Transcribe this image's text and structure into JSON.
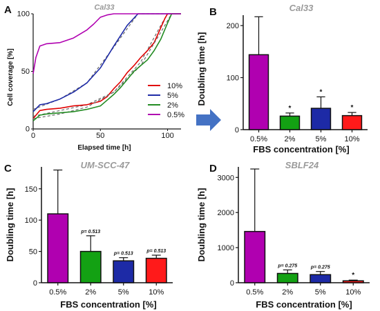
{
  "panel_labels": {
    "a": "A",
    "b": "B",
    "c": "C",
    "d": "D"
  },
  "chart_data": [
    {
      "panel": "A",
      "type": "line",
      "title": "Cal33",
      "xlabel": "Elapsed time [h]",
      "ylabel": "Cell coverage [%]",
      "xlim": [
        0,
        110
      ],
      "ylim": [
        0,
        100
      ],
      "xticks": [
        "0",
        "50",
        "100"
      ],
      "yticks": [
        "0",
        "50",
        "100"
      ],
      "legend_placement": "center-right",
      "colors": {
        "10%": "#e00000",
        "5%": "#1d2aa6",
        "2%": "#228b22",
        "0.5%": "#b000b0",
        "fit": "#6a6a6a"
      },
      "series": [
        {
          "name": "10%",
          "color": "#e00000",
          "x": [
            0,
            5,
            10,
            20,
            30,
            40,
            50,
            55,
            60,
            65,
            70,
            75,
            80,
            85,
            90,
            95,
            98,
            100,
            110
          ],
          "y": [
            9,
            16,
            17,
            18,
            20,
            21,
            24,
            28,
            35,
            41,
            49,
            55,
            62,
            68,
            75,
            88,
            96,
            100,
            100
          ],
          "fit_x": [
            0,
            20,
            40,
            60,
            80,
            95,
            100
          ],
          "fit_y": [
            11,
            16,
            21,
            32,
            58,
            90,
            100
          ]
        },
        {
          "name": "5%",
          "color": "#1d2aa6",
          "x": [
            0,
            5,
            10,
            20,
            30,
            40,
            50,
            60,
            70,
            78,
            80,
            110
          ],
          "y": [
            15,
            21,
            22,
            26,
            32,
            40,
            53,
            72,
            90,
            100,
            100,
            100
          ],
          "fit_x": [
            0,
            20,
            40,
            60,
            78,
            110
          ],
          "fit_y": [
            17,
            26,
            40,
            71,
            100,
            100
          ]
        },
        {
          "name": "2%",
          "color": "#228b22",
          "x": [
            0,
            5,
            10,
            20,
            30,
            40,
            50,
            55,
            60,
            65,
            70,
            75,
            80,
            85,
            90,
            95,
            100,
            103,
            110
          ],
          "y": [
            7,
            12,
            13,
            14,
            15,
            17,
            20,
            25,
            30,
            36,
            43,
            50,
            55,
            60,
            68,
            78,
            92,
            100,
            100
          ],
          "fit_x": [
            0,
            20,
            40,
            60,
            80,
            95,
            103
          ],
          "fit_y": [
            9,
            13,
            19,
            32,
            55,
            84,
            100
          ]
        },
        {
          "name": "0.5%",
          "color": "#b000b0",
          "x": [
            0,
            2,
            5,
            10,
            20,
            30,
            40,
            45,
            50,
            55,
            60,
            110
          ],
          "y": [
            48,
            62,
            72,
            74,
            75,
            79,
            86,
            91,
            97,
            99,
            100,
            100
          ]
        }
      ]
    },
    {
      "panel": "B",
      "type": "bar",
      "title": "Cal33",
      "xlabel": "FBS concentration [%]",
      "ylabel": "Doubling time [h]",
      "ylim": [
        0,
        220
      ],
      "yticks": [
        "0",
        "100",
        "200"
      ],
      "categories": [
        "0.5%",
        "2%",
        "5%",
        "10%"
      ],
      "values": [
        144,
        26,
        41,
        27
      ],
      "errors": [
        73,
        6,
        22,
        6
      ],
      "colors": [
        "#b000b0",
        "#13a113",
        "#1d2aa6",
        "#ff1a1a"
      ],
      "annotations": [
        "",
        "*",
        "*",
        "*"
      ]
    },
    {
      "panel": "C",
      "type": "bar",
      "title": "UM-SCC-47",
      "xlabel": "FBS concentration [%]",
      "ylabel": "Doubling time [h]",
      "ylim": [
        0,
        185
      ],
      "yticks": [
        "0",
        "50",
        "100",
        "150"
      ],
      "categories": [
        "0.5%",
        "2%",
        "5%",
        "10%"
      ],
      "values": [
        110,
        50,
        35,
        39
      ],
      "errors": [
        70,
        25,
        5,
        5
      ],
      "colors": [
        "#b000b0",
        "#13a113",
        "#1d2aa6",
        "#ff1a1a"
      ],
      "annotations": [
        "",
        "p= 0.513",
        "p= 0.513",
        "p= 0.513"
      ]
    },
    {
      "panel": "D",
      "type": "bar",
      "title": "SBLF24",
      "xlabel": "FBS concentration [%]",
      "ylabel": "Doubling time [h]",
      "ylim": [
        0,
        3300
      ],
      "yticks": [
        "0",
        "1000",
        "2000",
        "3000"
      ],
      "categories": [
        "0.5%",
        "2%",
        "5%",
        "10%"
      ],
      "values": [
        1460,
        265,
        230,
        55
      ],
      "errors": [
        1780,
        100,
        90,
        20
      ],
      "colors": [
        "#b000b0",
        "#13a113",
        "#1d2aa6",
        "#ff1a1a"
      ],
      "annotations": [
        "",
        "p= 0.275",
        "p= 0.275",
        "*"
      ]
    }
  ],
  "arrow_color": "#4472c4"
}
